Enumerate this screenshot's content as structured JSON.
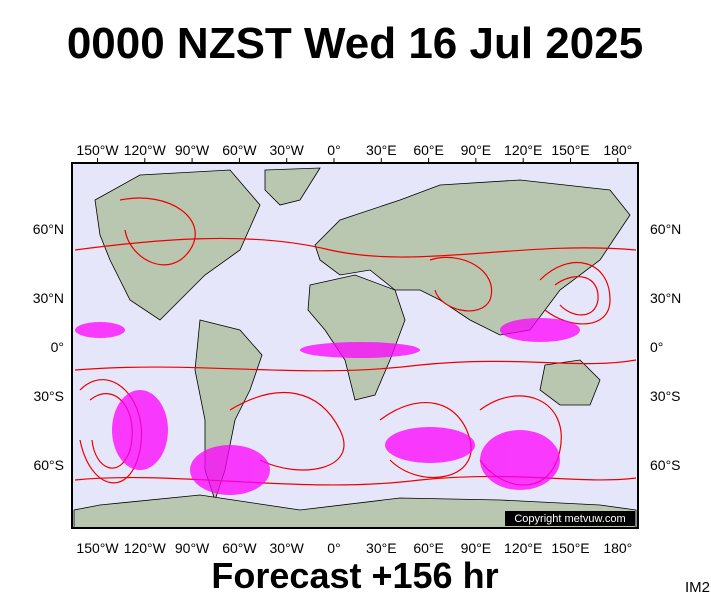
{
  "header": {
    "title": "0000 NZST Wed 16 Jul 2025"
  },
  "map": {
    "lon_labels": [
      "150°W",
      "120°W",
      "90°W",
      "60°W",
      "30°W",
      "0°",
      "30°E",
      "60°E",
      "90°E",
      "120°E",
      "150°E",
      "180°"
    ],
    "lat_labels": [
      "60°N",
      "30°N",
      "0°",
      "30°S",
      "60°S"
    ],
    "copyright": "Copyright metvuw.com"
  },
  "footer": {
    "forecast": "Forecast +156 hr",
    "code": "IM2"
  }
}
